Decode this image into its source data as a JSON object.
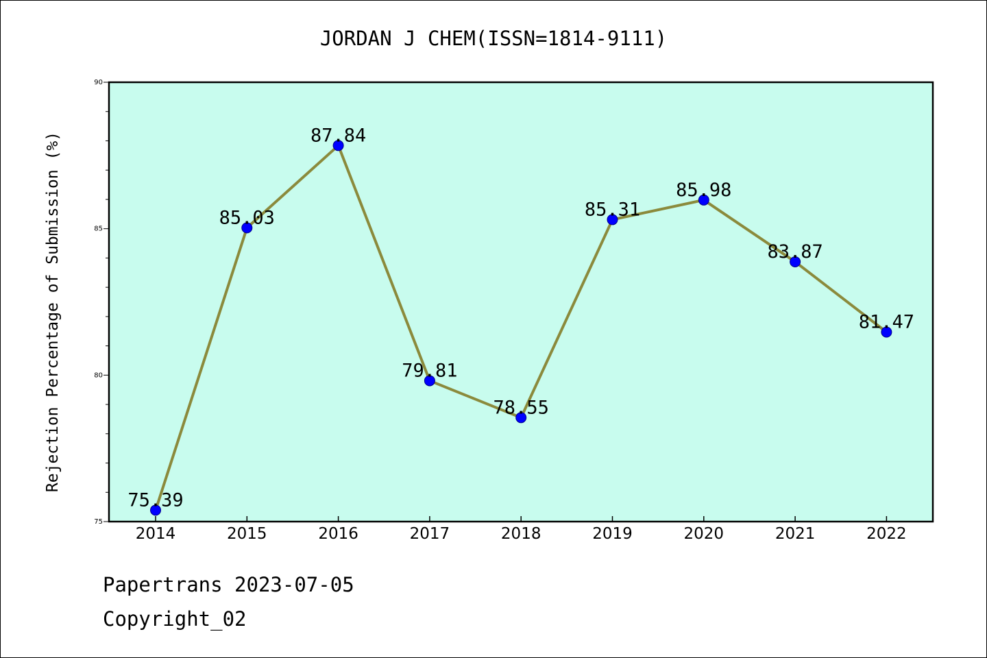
{
  "chart_data": {
    "type": "line",
    "title": "JORDAN J CHEM(ISSN=1814-9111)",
    "xlabel": "",
    "ylabel": "Rejection Percentage of Submission (%)",
    "categories": [
      "2014",
      "2015",
      "2016",
      "2017",
      "2018",
      "2019",
      "2020",
      "2021",
      "2022"
    ],
    "series": [
      {
        "values": [
          75.39,
          85.03,
          87.84,
          79.81,
          78.55,
          85.31,
          85.98,
          83.87,
          81.47
        ],
        "data_labels": [
          "75.39",
          "85.03",
          "87.84",
          "79.81",
          "78.55",
          "85.31",
          "85.98",
          "83.87",
          "81.47"
        ]
      }
    ],
    "ylim": [
      75,
      90
    ],
    "yticks": [
      75,
      80,
      85,
      90
    ],
    "ytick_labels": [
      "75",
      "80",
      "85",
      "90"
    ],
    "grid": false,
    "colors": {
      "plot_background": "#c8fcee",
      "line": "#8b8a3c",
      "marker": "#0000ff"
    }
  },
  "footer": {
    "source": "Papertrans 2023-07-05",
    "copyright": "Copyright_02"
  }
}
